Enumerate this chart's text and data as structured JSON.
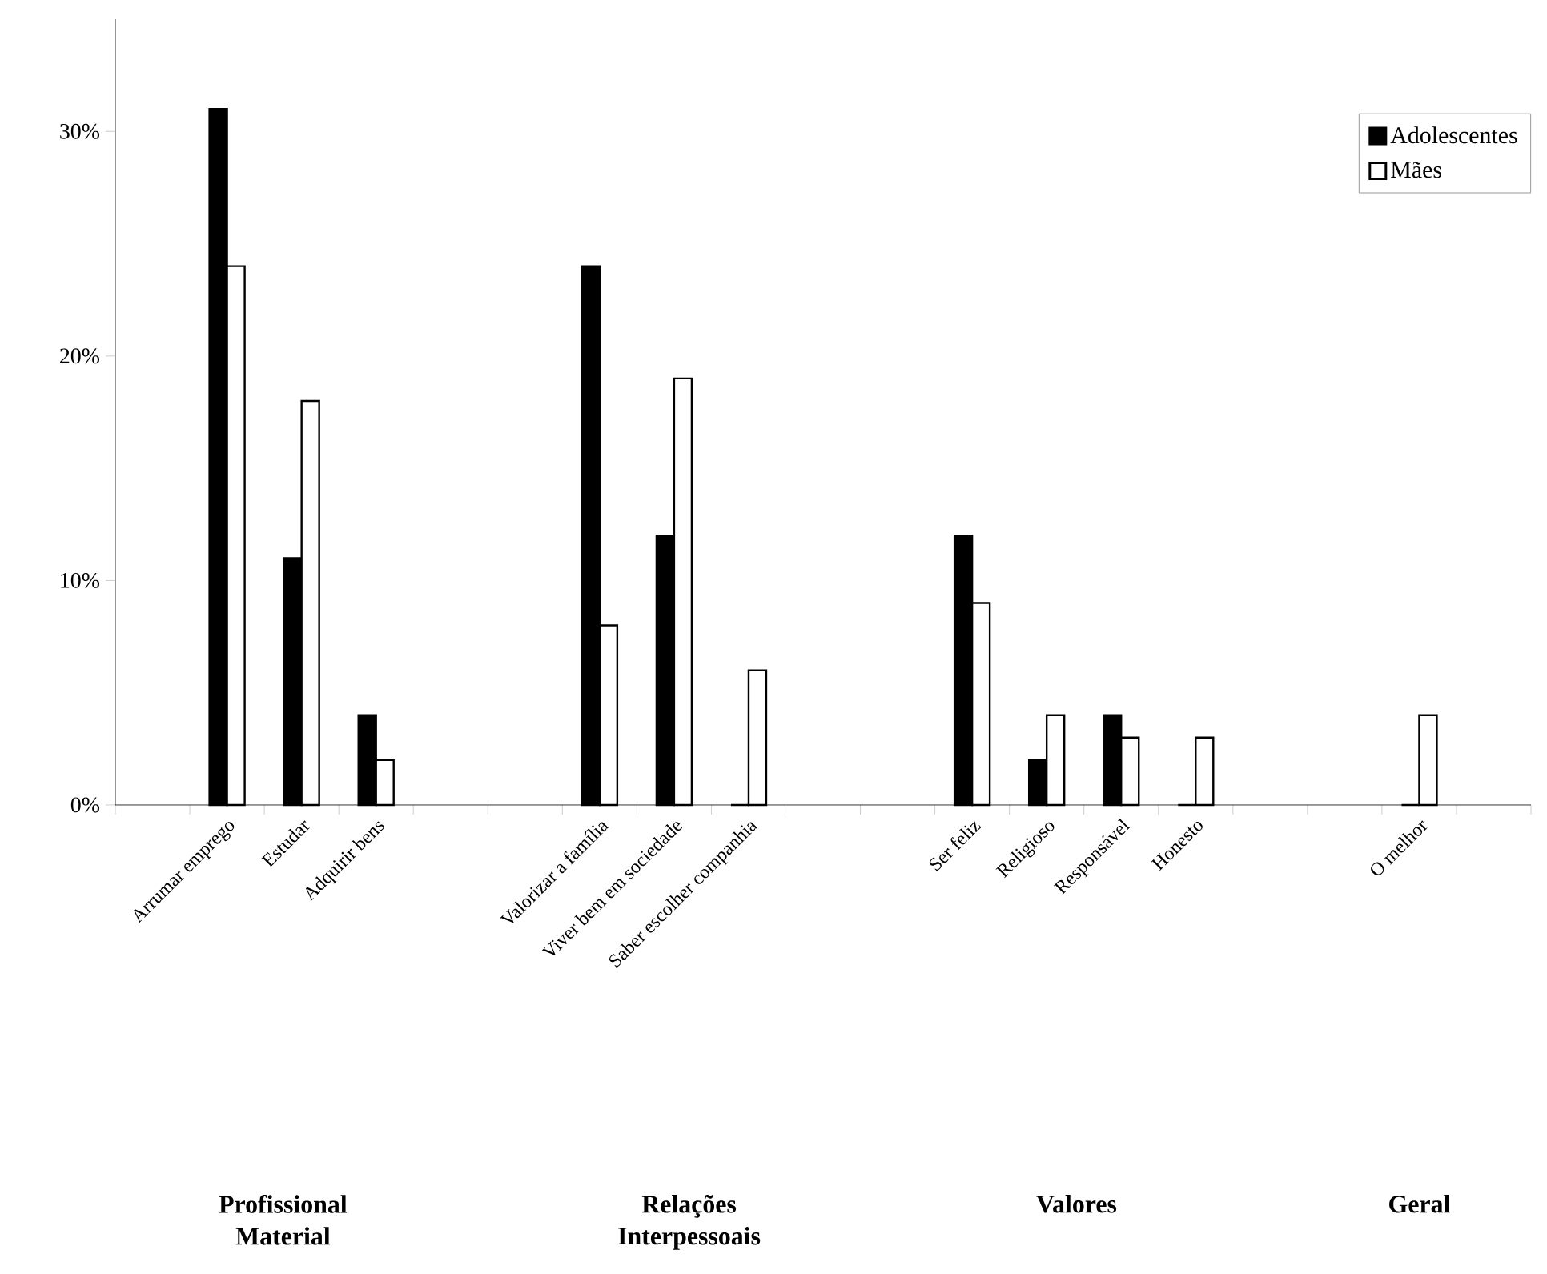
{
  "chart_data": {
    "type": "bar",
    "categories": [
      null,
      "Arrumar emprego",
      "Estudar",
      "Adquirir bens",
      null,
      null,
      "Valorizar a família",
      "Viver bem em sociedade",
      "Saber escolher companhia",
      null,
      null,
      "Ser feliz",
      "Religioso",
      "Responsável",
      "Honesto",
      null,
      null,
      "O melhor",
      null
    ],
    "series": [
      {
        "name": "Adolescentes",
        "color": "#000000",
        "values": [
          null,
          31,
          11,
          4,
          null,
          null,
          24,
          12,
          0,
          null,
          null,
          12,
          2,
          4,
          0,
          null,
          null,
          0,
          null
        ]
      },
      {
        "name": "Mães",
        "color": "#ffffff",
        "values": [
          null,
          24,
          18,
          2,
          null,
          null,
          8,
          19,
          6,
          null,
          null,
          9,
          4,
          3,
          3,
          null,
          null,
          4,
          null
        ]
      }
    ],
    "ylim": [
      0,
      35
    ],
    "yticks": [
      {
        "value": 0,
        "label": "0%"
      },
      {
        "value": 10,
        "label": "10%"
      },
      {
        "value": 20,
        "label": "20%"
      },
      {
        "value": 30,
        "label": "30%"
      }
    ],
    "legend": "top right",
    "annotations": [
      "**Profissional Material**",
      "**Relações Interpessoais**",
      "**Valores**",
      "**Geral**"
    ]
  }
}
